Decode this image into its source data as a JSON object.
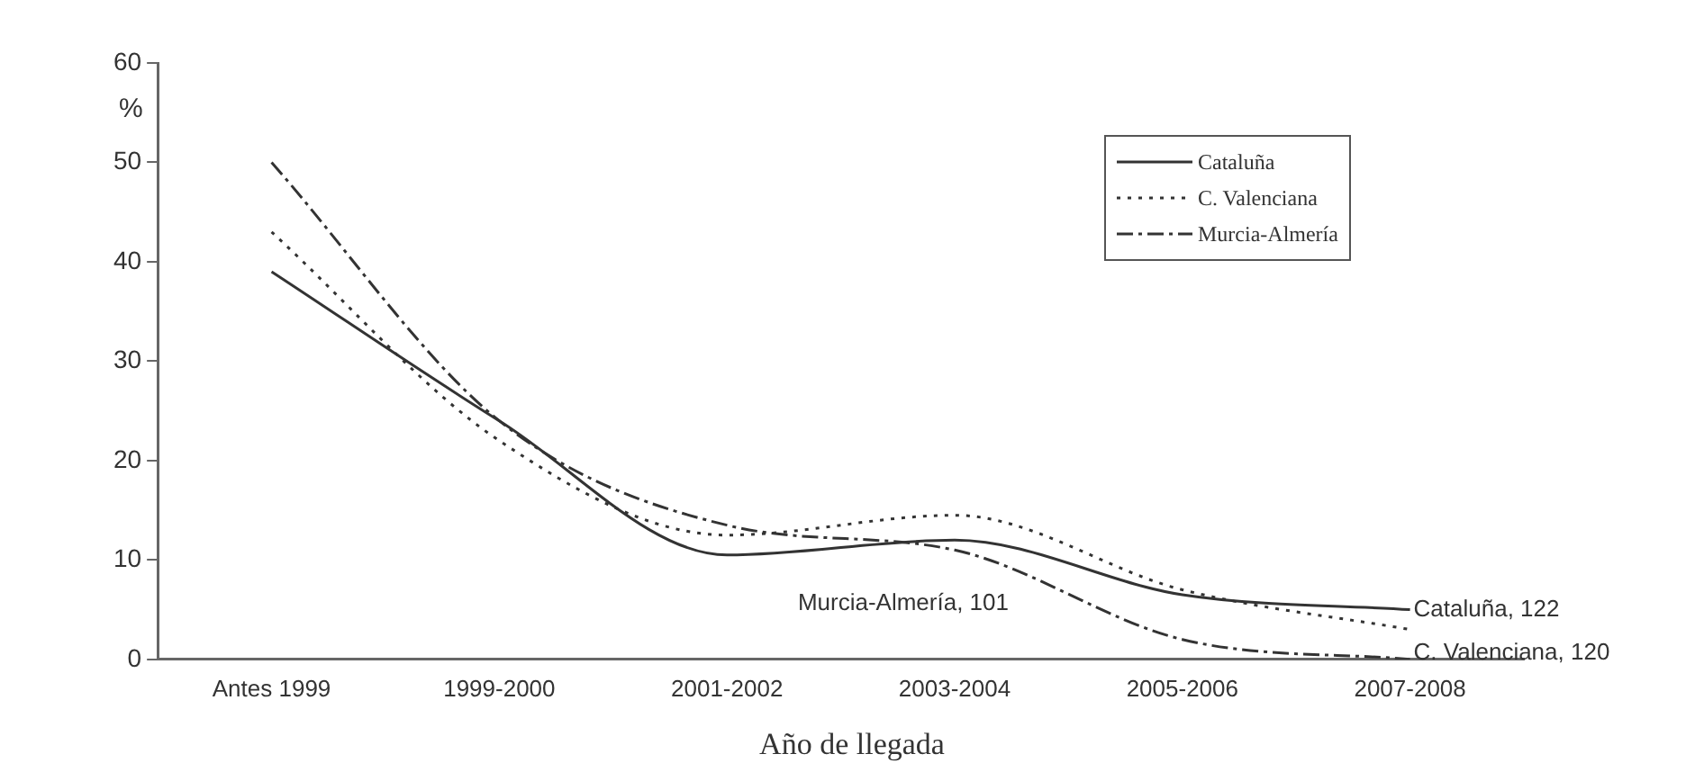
{
  "chart_data": {
    "type": "line",
    "ylabel": "%",
    "xlabel": "Año de llegada",
    "categories": [
      "Antes 1999",
      "1999-2000",
      "2001-2002",
      "2003-2004",
      "2005-2006",
      "2007-2008"
    ],
    "series": [
      {
        "name": "Cataluña",
        "color": "#333333",
        "line_style": "solid",
        "values": [
          39,
          24,
          10.5,
          12,
          6.5,
          5
        ]
      },
      {
        "name": "C. Valenciana",
        "color": "#333333",
        "line_style": "dotted",
        "values": [
          43,
          22,
          12.5,
          14.5,
          7,
          3
        ]
      },
      {
        "name": "Murcia-Almería",
        "color": "#333333",
        "line_style": "dashed",
        "values": [
          50,
          24,
          13.5,
          11,
          2,
          0
        ]
      }
    ],
    "ylim": [
      0,
      60
    ],
    "yticks": [
      0,
      10,
      20,
      30,
      40,
      50,
      60
    ],
    "grid": false,
    "legend": "top right",
    "marker": "none",
    "annotations": [
      {
        "text": "Murcia-Almería, 101",
        "x": "2003-2004",
        "y": 11
      },
      {
        "text": "Cataluña, 122",
        "x": "2007-2008",
        "y": 5
      },
      {
        "text": "C. Valenciana, 120",
        "x": "2007-2008",
        "y": 3
      }
    ]
  }
}
